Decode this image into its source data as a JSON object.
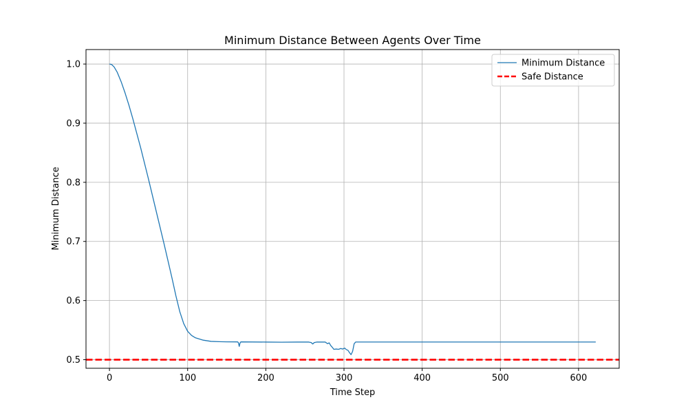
{
  "chart_data": {
    "type": "line",
    "title": "Minimum Distance Between Agents Over Time",
    "xlabel": "Time Step",
    "ylabel": "Minimum Distance",
    "xlim": [
      -30,
      652
    ],
    "ylim": [
      0.4855,
      1.0245
    ],
    "xticks": [
      0,
      100,
      200,
      300,
      400,
      500,
      600
    ],
    "yticks": [
      0.5,
      0.6,
      0.7,
      0.8,
      0.9,
      1.0
    ],
    "grid": true,
    "legend_position": "upper right",
    "series": [
      {
        "name": "Minimum Distance",
        "color": "#1f77b4",
        "style": "solid",
        "points": [
          [
            0,
            1.0
          ],
          [
            3,
            0.999
          ],
          [
            6,
            0.995
          ],
          [
            10,
            0.986
          ],
          [
            15,
            0.97
          ],
          [
            20,
            0.951
          ],
          [
            25,
            0.93
          ],
          [
            30,
            0.907
          ],
          [
            40,
            0.858
          ],
          [
            50,
            0.805
          ],
          [
            60,
            0.75
          ],
          [
            70,
            0.695
          ],
          [
            80,
            0.638
          ],
          [
            85,
            0.608
          ],
          [
            90,
            0.581
          ],
          [
            95,
            0.561
          ],
          [
            100,
            0.548
          ],
          [
            105,
            0.541
          ],
          [
            110,
            0.537
          ],
          [
            120,
            0.533
          ],
          [
            130,
            0.531
          ],
          [
            140,
            0.5305
          ],
          [
            150,
            0.5302
          ],
          [
            164,
            0.5301
          ],
          [
            165,
            0.5285
          ],
          [
            166,
            0.5225
          ],
          [
            167,
            0.528
          ],
          [
            168,
            0.5301
          ],
          [
            200,
            0.5298
          ],
          [
            220,
            0.5296
          ],
          [
            240,
            0.5298
          ],
          [
            255,
            0.5298
          ],
          [
            258,
            0.529
          ],
          [
            260,
            0.5265
          ],
          [
            262,
            0.529
          ],
          [
            265,
            0.5298
          ],
          [
            276,
            0.5298
          ],
          [
            279,
            0.527
          ],
          [
            281,
            0.5285
          ],
          [
            283,
            0.524
          ],
          [
            285,
            0.521
          ],
          [
            287,
            0.5175
          ],
          [
            290,
            0.518
          ],
          [
            293,
            0.5175
          ],
          [
            296,
            0.519
          ],
          [
            298,
            0.518
          ],
          [
            301,
            0.5195
          ],
          [
            303,
            0.517
          ],
          [
            305,
            0.516
          ],
          [
            307,
            0.512
          ],
          [
            309,
            0.5085
          ],
          [
            311,
            0.514
          ],
          [
            313,
            0.527
          ],
          [
            315,
            0.5299
          ],
          [
            400,
            0.5299
          ],
          [
            500,
            0.5299
          ],
          [
            600,
            0.5299
          ],
          [
            622,
            0.5299
          ]
        ]
      },
      {
        "name": "Safe Distance",
        "color": "#ff0000",
        "style": "dashed",
        "y": 0.5
      }
    ]
  }
}
